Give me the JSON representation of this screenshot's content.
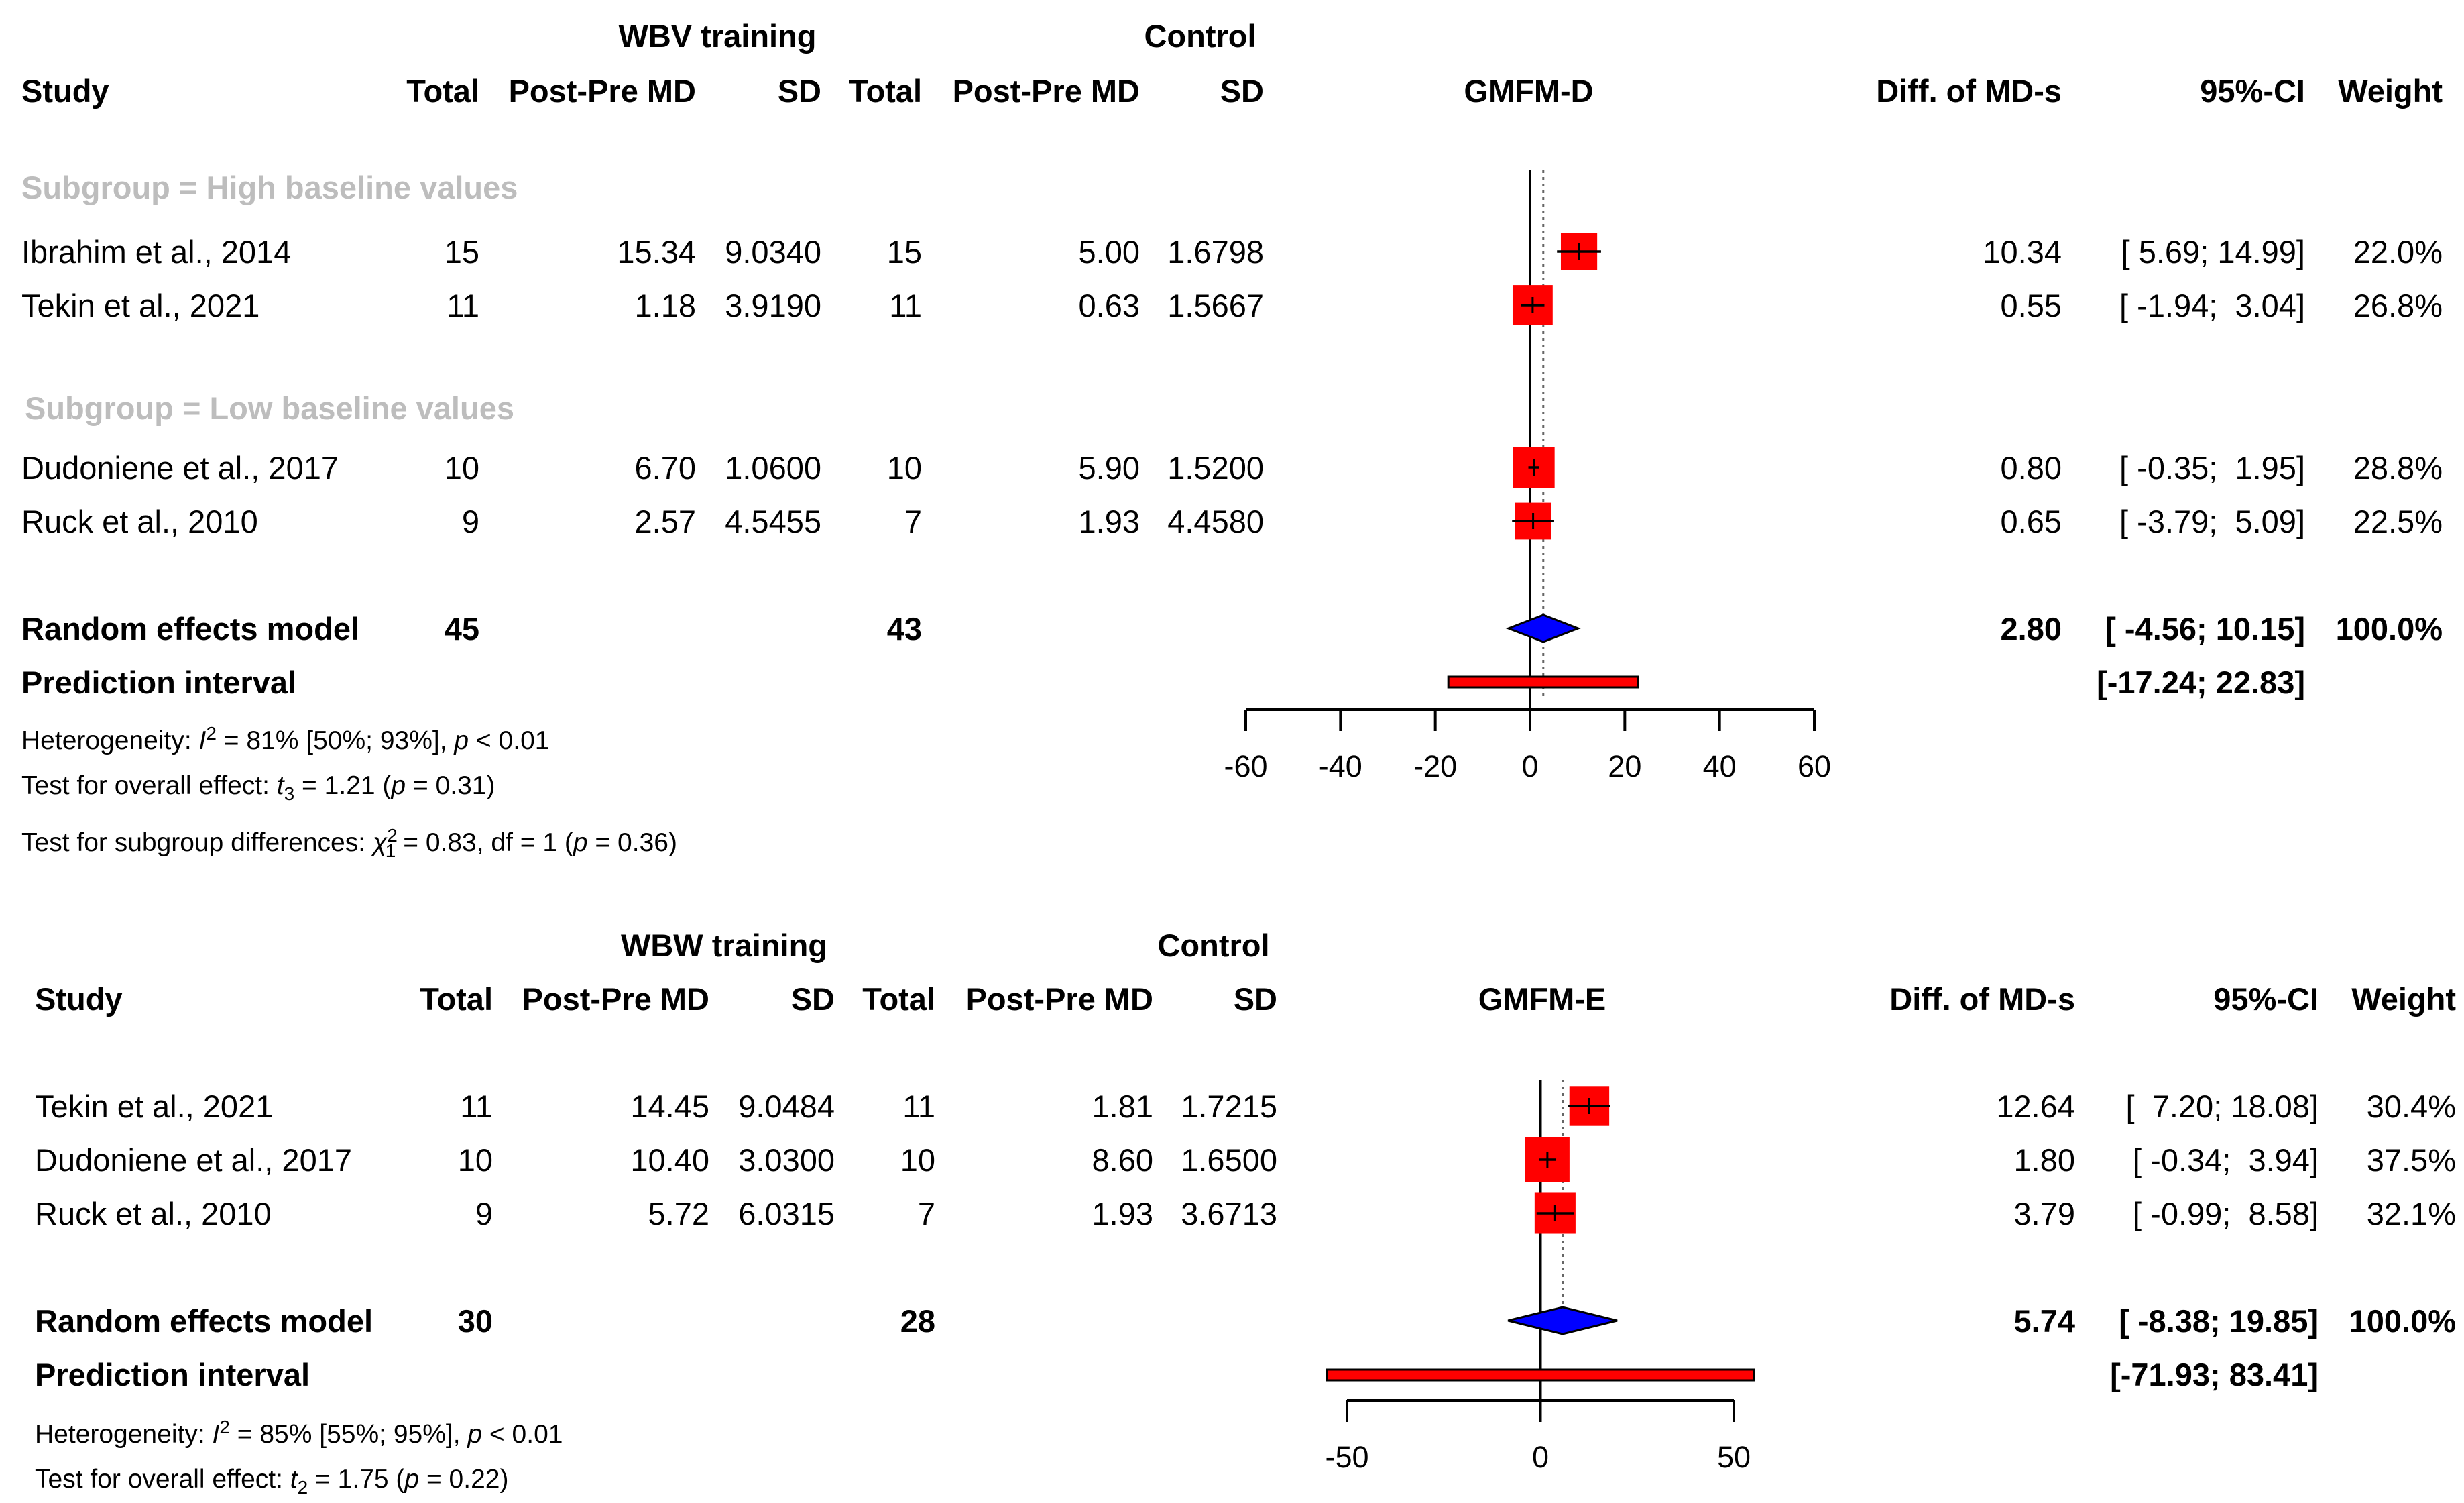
{
  "chart_data": [
    {
      "type": "forest",
      "outcome": "GMFM-D",
      "group_labels": {
        "experimental": "WBV training",
        "control": "Control"
      },
      "columns": {
        "study": "Study",
        "total_e": "Total",
        "md_e": "Post-Pre MD",
        "sd_e": "SD",
        "total_c": "Total",
        "md_c": "Post-Pre MD",
        "sd_c": "SD",
        "plot": "GMFM-D",
        "effect": "Diff. of MD-s",
        "ci": "95%-CI",
        "weight": "Weight"
      },
      "axis": {
        "xlim": [
          -60,
          60
        ],
        "ticks": [
          -60,
          -40,
          -20,
          0,
          20,
          40,
          60
        ],
        "null_line": 0
      },
      "subgroups": [
        {
          "label": "Subgroup = High baseline values",
          "studies": [
            {
              "study": "Ibrahim et al., 2014",
              "total_e": "15",
              "md_e": "15.34",
              "sd_e": "9.0340",
              "total_c": "15",
              "md_c": "5.00",
              "sd_c": "1.6798",
              "effect": 10.34,
              "lower": 5.69,
              "upper": 14.99,
              "effect_text": "10.34",
              "ci_text": "[ 5.69; 14.99]",
              "weight_text": "22.0%",
              "weight": 22.0
            },
            {
              "study": "Tekin et al., 2021",
              "total_e": "11",
              "md_e": "1.18",
              "sd_e": "3.9190",
              "total_c": "11",
              "md_c": "0.63",
              "sd_c": "1.5667",
              "effect": 0.55,
              "lower": -1.94,
              "upper": 3.04,
              "effect_text": "0.55",
              "ci_text": "[ -1.94;  3.04]",
              "weight_text": "26.8%",
              "weight": 26.8
            }
          ]
        },
        {
          "label": "Subgroup = Low baseline values",
          "studies": [
            {
              "study": "Dudoniene et al., 2017",
              "total_e": "10",
              "md_e": "6.70",
              "sd_e": "1.0600",
              "total_c": "10",
              "md_c": "5.90",
              "sd_c": "1.5200",
              "effect": 0.8,
              "lower": -0.35,
              "upper": 1.95,
              "effect_text": "0.80",
              "ci_text": "[ -0.35;  1.95]",
              "weight_text": "28.8%",
              "weight": 28.8
            },
            {
              "study": "Ruck et al., 2010",
              "total_e": "9",
              "md_e": "2.57",
              "sd_e": "4.5455",
              "total_c": "7",
              "md_c": "1.93",
              "sd_c": "4.4580",
              "effect": 0.65,
              "lower": -3.79,
              "upper": 5.09,
              "effect_text": "0.65",
              "ci_text": "[ -3.79;  5.09]",
              "weight_text": "22.5%",
              "weight": 22.5
            }
          ]
        }
      ],
      "pooled": {
        "label": "Random effects model",
        "total_e": "45",
        "total_c": "43",
        "effect": 2.8,
        "lower": -4.56,
        "upper": 10.15,
        "effect_text": "2.80",
        "ci_text": "[ -4.56; 10.15]",
        "weight_text": "100.0%"
      },
      "prediction": {
        "label": "Prediction interval",
        "lower": -17.24,
        "upper": 22.83,
        "ci_text": "[-17.24; 22.83]"
      },
      "stats": {
        "heterogeneity": {
          "prefix": "Heterogeneity: ",
          "sym": "I",
          "sup": "2",
          "rest": " = 81% [50%; 93%], ",
          "p": "p",
          "ptail": " < 0.01"
        },
        "overall": {
          "prefix": "Test for overall effect: ",
          "sym": "t",
          "sub": "3",
          "rest": " = 1.21 (",
          "p": "p",
          "ptail": " = 0.31)"
        },
        "subgroup": {
          "prefix": "Test for subgroup differences: ",
          "sym": "χ",
          "sup": "2",
          "sub": "1",
          "rest": " = 0.83, df = 1 (",
          "p": "p",
          "ptail": " = 0.36)"
        }
      }
    },
    {
      "type": "forest",
      "outcome": "GMFM-E",
      "group_labels": {
        "experimental": "WBW training",
        "control": "Control"
      },
      "columns": {
        "study": "Study",
        "total_e": "Total",
        "md_e": "Post-Pre MD",
        "sd_e": "SD",
        "total_c": "Total",
        "md_c": "Post-Pre MD",
        "sd_c": "SD",
        "plot": "GMFM-E",
        "effect": "Diff. of MD-s",
        "ci": "95%-CI",
        "weight": "Weight"
      },
      "axis": {
        "xlim": [
          -50,
          50
        ],
        "ticks": [
          -50,
          0,
          50
        ],
        "null_line": 0
      },
      "studies": [
        {
          "study": "Tekin et al., 2021",
          "total_e": "11",
          "md_e": "14.45",
          "sd_e": "9.0484",
          "total_c": "11",
          "md_c": "1.81",
          "sd_c": "1.7215",
          "effect": 12.64,
          "lower": 7.2,
          "upper": 18.08,
          "effect_text": "12.64",
          "ci_text": "[  7.20; 18.08]",
          "weight_text": "30.4%",
          "weight": 30.4
        },
        {
          "study": "Dudoniene et al., 2017",
          "total_e": "10",
          "md_e": "10.40",
          "sd_e": "3.0300",
          "total_c": "10",
          "md_c": "8.60",
          "sd_c": "1.6500",
          "effect": 1.8,
          "lower": -0.34,
          "upper": 3.94,
          "effect_text": "1.80",
          "ci_text": "[ -0.34;  3.94]",
          "weight_text": "37.5%",
          "weight": 37.5
        },
        {
          "study": "Ruck et al., 2010",
          "total_e": "9",
          "md_e": "5.72",
          "sd_e": "6.0315",
          "total_c": "7",
          "md_c": "1.93",
          "sd_c": "3.6713",
          "effect": 3.79,
          "lower": -0.99,
          "upper": 8.58,
          "effect_text": "3.79",
          "ci_text": "[ -0.99;  8.58]",
          "weight_text": "32.1%",
          "weight": 32.1
        }
      ],
      "pooled": {
        "label": "Random effects model",
        "total_e": "30",
        "total_c": "28",
        "effect": 5.74,
        "lower": -8.38,
        "upper": 19.85,
        "effect_text": "5.74",
        "ci_text": "[ -8.38; 19.85]",
        "weight_text": "100.0%"
      },
      "prediction": {
        "label": "Prediction interval",
        "lower": -71.93,
        "upper": 83.41,
        "ci_text": "[-71.93; 83.41]"
      },
      "stats": {
        "heterogeneity": {
          "prefix": "Heterogeneity: ",
          "sym": "I",
          "sup": "2",
          "rest": " = 85% [55%; 95%], ",
          "p": "p",
          "ptail": " < 0.01"
        },
        "overall": {
          "prefix": "Test for overall effect: ",
          "sym": "t",
          "sub": "2",
          "rest": " = 1.75 (",
          "p": "p",
          "ptail": " = 0.22)"
        }
      }
    }
  ]
}
